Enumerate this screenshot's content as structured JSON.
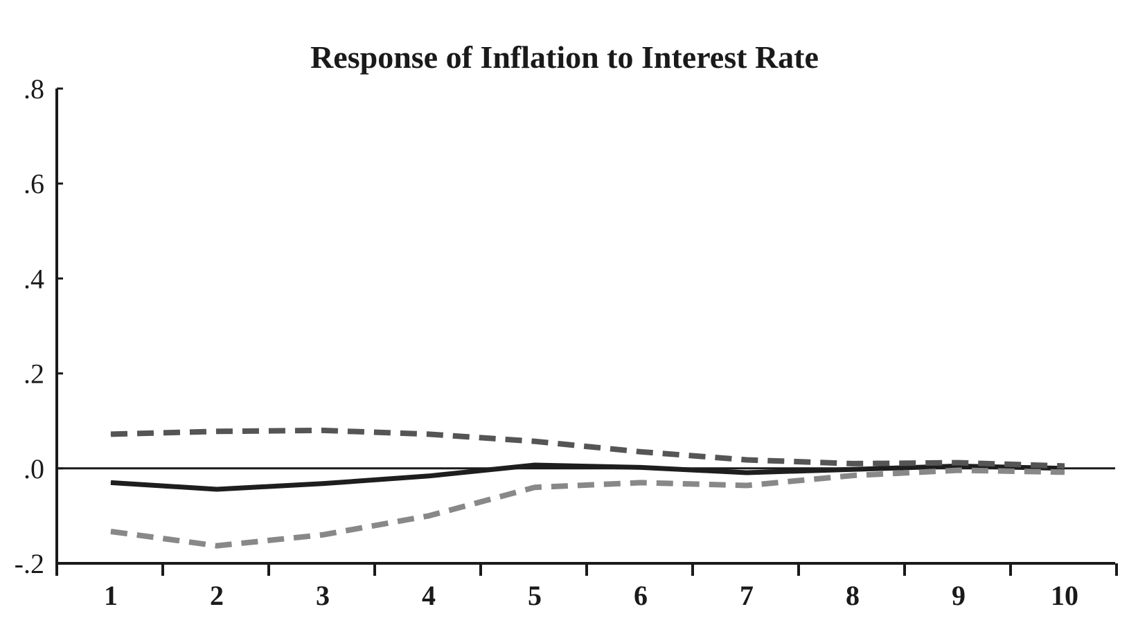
{
  "chart_data": {
    "type": "line",
    "title": "Response of Inflation to Interest Rate",
    "xlabel": "",
    "ylabel": "",
    "x": [
      1,
      2,
      3,
      4,
      5,
      6,
      7,
      8,
      9,
      10
    ],
    "x_tick_labels": [
      "1",
      "2",
      "3",
      "4",
      "5",
      "6",
      "7",
      "8",
      "9",
      "10"
    ],
    "ylim": [
      -0.2,
      0.8
    ],
    "y_ticks": [
      -0.2,
      0.0,
      0.2,
      0.4,
      0.6,
      0.8
    ],
    "y_tick_labels": [
      "-.2",
      ".0",
      ".2",
      ".4",
      ".6",
      ".8"
    ],
    "grid": false,
    "zero_line": true,
    "series": [
      {
        "key": "response",
        "style": "solid",
        "color": "#1f1d1e",
        "values": [
          -0.03,
          -0.044,
          -0.032,
          -0.016,
          0.007,
          0.002,
          -0.009,
          -0.002,
          0.005,
          0.0
        ]
      },
      {
        "key": "upper-band",
        "style": "dashed",
        "color": "#555555",
        "values": [
          0.072,
          0.078,
          0.08,
          0.072,
          0.057,
          0.035,
          0.018,
          0.01,
          0.012,
          0.005
        ]
      },
      {
        "key": "lower-band",
        "style": "dashed",
        "color": "#888888",
        "values": [
          -0.133,
          -0.163,
          -0.14,
          -0.1,
          -0.04,
          -0.03,
          -0.036,
          -0.015,
          -0.004,
          -0.008
        ]
      }
    ]
  }
}
